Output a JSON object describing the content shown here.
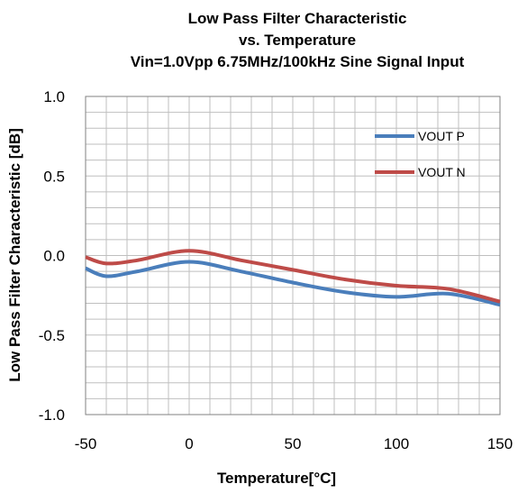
{
  "chart_data": {
    "type": "line",
    "title_lines": [
      "Low Pass Filter Characteristic",
      "vs. Temperature",
      "Vin=1.0Vpp 6.75MHz/100kHz Sine Signal Input"
    ],
    "xlabel": "Temperature[°C]",
    "ylabel": "Low Pass Filter Characteristic [dB]",
    "xlim": [
      -50,
      150
    ],
    "ylim": [
      -1.0,
      1.0
    ],
    "x_ticks": [
      -50,
      0,
      50,
      100,
      150
    ],
    "x_tick_labels": [
      "-50",
      "0",
      "50",
      "100",
      "150"
    ],
    "y_ticks": [
      1.0,
      0.5,
      0.0,
      -0.5,
      -1.0
    ],
    "y_tick_labels": [
      "1.0",
      "0.5",
      "0.0",
      "-0.5",
      "-1.0"
    ],
    "x_minor_step": 10,
    "y_minor_step": 0.1,
    "grid": true,
    "legend_position": "upper-right",
    "series": [
      {
        "name": "VOUT P",
        "color": "#4a7ebb",
        "x": [
          -50,
          -40,
          -25,
          0,
          25,
          50,
          75,
          100,
          125,
          150
        ],
        "y": [
          -0.08,
          -0.13,
          -0.1,
          -0.04,
          -0.1,
          -0.17,
          -0.23,
          -0.26,
          -0.24,
          -0.31
        ]
      },
      {
        "name": "VOUT N",
        "color": "#be4b48",
        "x": [
          -50,
          -40,
          -25,
          0,
          25,
          50,
          75,
          100,
          125,
          150
        ],
        "y": [
          -0.01,
          -0.05,
          -0.03,
          0.03,
          -0.03,
          -0.09,
          -0.15,
          -0.19,
          -0.21,
          -0.29
        ]
      }
    ]
  }
}
